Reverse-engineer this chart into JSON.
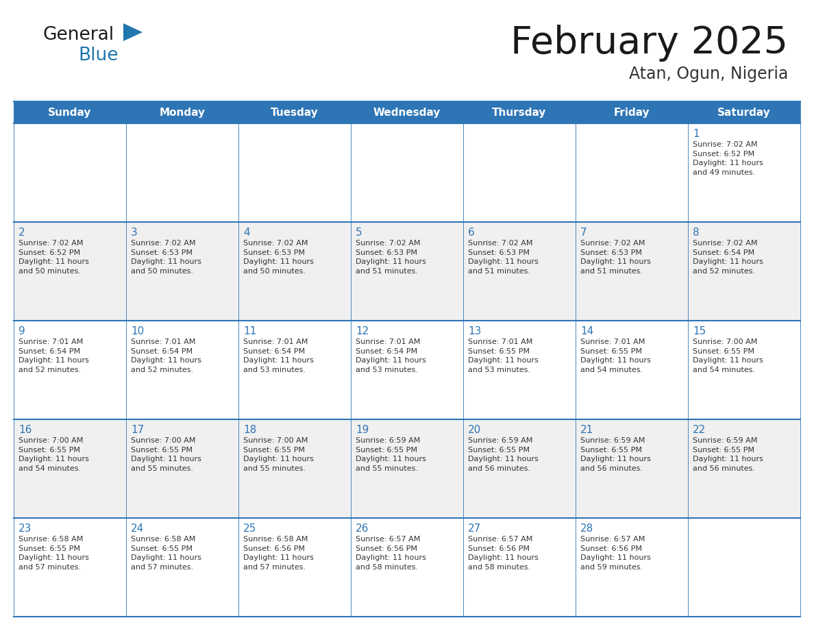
{
  "title": "February 2025",
  "subtitle": "Atan, Ogun, Nigeria",
  "header_bg": "#2E75B6",
  "header_text": "#FFFFFF",
  "cell_bg": "#FFFFFF",
  "cell_bg_alt": "#F0F0F0",
  "border_color": "#2E75B6",
  "title_color": "#1a1a1a",
  "subtitle_color": "#333333",
  "day_num_color": "#2E75B6",
  "cell_text_color": "#333333",
  "days_of_week": [
    "Sunday",
    "Monday",
    "Tuesday",
    "Wednesday",
    "Thursday",
    "Friday",
    "Saturday"
  ],
  "weeks": [
    [
      {
        "day": "",
        "info": ""
      },
      {
        "day": "",
        "info": ""
      },
      {
        "day": "",
        "info": ""
      },
      {
        "day": "",
        "info": ""
      },
      {
        "day": "",
        "info": ""
      },
      {
        "day": "",
        "info": ""
      },
      {
        "day": "1",
        "info": "Sunrise: 7:02 AM\nSunset: 6:52 PM\nDaylight: 11 hours\nand 49 minutes."
      }
    ],
    [
      {
        "day": "2",
        "info": "Sunrise: 7:02 AM\nSunset: 6:52 PM\nDaylight: 11 hours\nand 50 minutes."
      },
      {
        "day": "3",
        "info": "Sunrise: 7:02 AM\nSunset: 6:53 PM\nDaylight: 11 hours\nand 50 minutes."
      },
      {
        "day": "4",
        "info": "Sunrise: 7:02 AM\nSunset: 6:53 PM\nDaylight: 11 hours\nand 50 minutes."
      },
      {
        "day": "5",
        "info": "Sunrise: 7:02 AM\nSunset: 6:53 PM\nDaylight: 11 hours\nand 51 minutes."
      },
      {
        "day": "6",
        "info": "Sunrise: 7:02 AM\nSunset: 6:53 PM\nDaylight: 11 hours\nand 51 minutes."
      },
      {
        "day": "7",
        "info": "Sunrise: 7:02 AM\nSunset: 6:53 PM\nDaylight: 11 hours\nand 51 minutes."
      },
      {
        "day": "8",
        "info": "Sunrise: 7:02 AM\nSunset: 6:54 PM\nDaylight: 11 hours\nand 52 minutes."
      }
    ],
    [
      {
        "day": "9",
        "info": "Sunrise: 7:01 AM\nSunset: 6:54 PM\nDaylight: 11 hours\nand 52 minutes."
      },
      {
        "day": "10",
        "info": "Sunrise: 7:01 AM\nSunset: 6:54 PM\nDaylight: 11 hours\nand 52 minutes."
      },
      {
        "day": "11",
        "info": "Sunrise: 7:01 AM\nSunset: 6:54 PM\nDaylight: 11 hours\nand 53 minutes."
      },
      {
        "day": "12",
        "info": "Sunrise: 7:01 AM\nSunset: 6:54 PM\nDaylight: 11 hours\nand 53 minutes."
      },
      {
        "day": "13",
        "info": "Sunrise: 7:01 AM\nSunset: 6:55 PM\nDaylight: 11 hours\nand 53 minutes."
      },
      {
        "day": "14",
        "info": "Sunrise: 7:01 AM\nSunset: 6:55 PM\nDaylight: 11 hours\nand 54 minutes."
      },
      {
        "day": "15",
        "info": "Sunrise: 7:00 AM\nSunset: 6:55 PM\nDaylight: 11 hours\nand 54 minutes."
      }
    ],
    [
      {
        "day": "16",
        "info": "Sunrise: 7:00 AM\nSunset: 6:55 PM\nDaylight: 11 hours\nand 54 minutes."
      },
      {
        "day": "17",
        "info": "Sunrise: 7:00 AM\nSunset: 6:55 PM\nDaylight: 11 hours\nand 55 minutes."
      },
      {
        "day": "18",
        "info": "Sunrise: 7:00 AM\nSunset: 6:55 PM\nDaylight: 11 hours\nand 55 minutes."
      },
      {
        "day": "19",
        "info": "Sunrise: 6:59 AM\nSunset: 6:55 PM\nDaylight: 11 hours\nand 55 minutes."
      },
      {
        "day": "20",
        "info": "Sunrise: 6:59 AM\nSunset: 6:55 PM\nDaylight: 11 hours\nand 56 minutes."
      },
      {
        "day": "21",
        "info": "Sunrise: 6:59 AM\nSunset: 6:55 PM\nDaylight: 11 hours\nand 56 minutes."
      },
      {
        "day": "22",
        "info": "Sunrise: 6:59 AM\nSunset: 6:55 PM\nDaylight: 11 hours\nand 56 minutes."
      }
    ],
    [
      {
        "day": "23",
        "info": "Sunrise: 6:58 AM\nSunset: 6:55 PM\nDaylight: 11 hours\nand 57 minutes."
      },
      {
        "day": "24",
        "info": "Sunrise: 6:58 AM\nSunset: 6:55 PM\nDaylight: 11 hours\nand 57 minutes."
      },
      {
        "day": "25",
        "info": "Sunrise: 6:58 AM\nSunset: 6:56 PM\nDaylight: 11 hours\nand 57 minutes."
      },
      {
        "day": "26",
        "info": "Sunrise: 6:57 AM\nSunset: 6:56 PM\nDaylight: 11 hours\nand 58 minutes."
      },
      {
        "day": "27",
        "info": "Sunrise: 6:57 AM\nSunset: 6:56 PM\nDaylight: 11 hours\nand 58 minutes."
      },
      {
        "day": "28",
        "info": "Sunrise: 6:57 AM\nSunset: 6:56 PM\nDaylight: 11 hours\nand 59 minutes."
      },
      {
        "day": "",
        "info": ""
      }
    ]
  ],
  "logo_general_color": "#1a1a1a",
  "logo_blue_color": "#2176AE",
  "logo_triangle_color": "#2176AE"
}
